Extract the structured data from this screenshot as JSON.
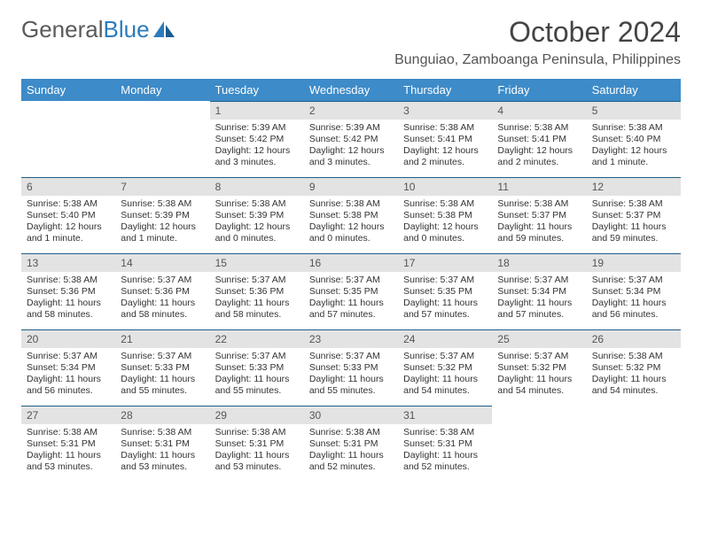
{
  "brand": {
    "part1": "General",
    "part2": "Blue"
  },
  "title": "October 2024",
  "location": "Bunguiao, Zamboanga Peninsula, Philippines",
  "colors": {
    "header_bg": "#3d8bc8",
    "daynum_bg": "#e3e3e3",
    "rule": "#1f5f8b",
    "brand_blue": "#2b7bbd",
    "text": "#333333",
    "background": "#ffffff"
  },
  "dow": [
    "Sunday",
    "Monday",
    "Tuesday",
    "Wednesday",
    "Thursday",
    "Friday",
    "Saturday"
  ],
  "weeks": [
    [
      null,
      null,
      {
        "n": "1",
        "sr": "Sunrise: 5:39 AM",
        "ss": "Sunset: 5:42 PM",
        "dl": "Daylight: 12 hours and 3 minutes."
      },
      {
        "n": "2",
        "sr": "Sunrise: 5:39 AM",
        "ss": "Sunset: 5:42 PM",
        "dl": "Daylight: 12 hours and 3 minutes."
      },
      {
        "n": "3",
        "sr": "Sunrise: 5:38 AM",
        "ss": "Sunset: 5:41 PM",
        "dl": "Daylight: 12 hours and 2 minutes."
      },
      {
        "n": "4",
        "sr": "Sunrise: 5:38 AM",
        "ss": "Sunset: 5:41 PM",
        "dl": "Daylight: 12 hours and 2 minutes."
      },
      {
        "n": "5",
        "sr": "Sunrise: 5:38 AM",
        "ss": "Sunset: 5:40 PM",
        "dl": "Daylight: 12 hours and 1 minute."
      }
    ],
    [
      {
        "n": "6",
        "sr": "Sunrise: 5:38 AM",
        "ss": "Sunset: 5:40 PM",
        "dl": "Daylight: 12 hours and 1 minute."
      },
      {
        "n": "7",
        "sr": "Sunrise: 5:38 AM",
        "ss": "Sunset: 5:39 PM",
        "dl": "Daylight: 12 hours and 1 minute."
      },
      {
        "n": "8",
        "sr": "Sunrise: 5:38 AM",
        "ss": "Sunset: 5:39 PM",
        "dl": "Daylight: 12 hours and 0 minutes."
      },
      {
        "n": "9",
        "sr": "Sunrise: 5:38 AM",
        "ss": "Sunset: 5:38 PM",
        "dl": "Daylight: 12 hours and 0 minutes."
      },
      {
        "n": "10",
        "sr": "Sunrise: 5:38 AM",
        "ss": "Sunset: 5:38 PM",
        "dl": "Daylight: 12 hours and 0 minutes."
      },
      {
        "n": "11",
        "sr": "Sunrise: 5:38 AM",
        "ss": "Sunset: 5:37 PM",
        "dl": "Daylight: 11 hours and 59 minutes."
      },
      {
        "n": "12",
        "sr": "Sunrise: 5:38 AM",
        "ss": "Sunset: 5:37 PM",
        "dl": "Daylight: 11 hours and 59 minutes."
      }
    ],
    [
      {
        "n": "13",
        "sr": "Sunrise: 5:38 AM",
        "ss": "Sunset: 5:36 PM",
        "dl": "Daylight: 11 hours and 58 minutes."
      },
      {
        "n": "14",
        "sr": "Sunrise: 5:37 AM",
        "ss": "Sunset: 5:36 PM",
        "dl": "Daylight: 11 hours and 58 minutes."
      },
      {
        "n": "15",
        "sr": "Sunrise: 5:37 AM",
        "ss": "Sunset: 5:36 PM",
        "dl": "Daylight: 11 hours and 58 minutes."
      },
      {
        "n": "16",
        "sr": "Sunrise: 5:37 AM",
        "ss": "Sunset: 5:35 PM",
        "dl": "Daylight: 11 hours and 57 minutes."
      },
      {
        "n": "17",
        "sr": "Sunrise: 5:37 AM",
        "ss": "Sunset: 5:35 PM",
        "dl": "Daylight: 11 hours and 57 minutes."
      },
      {
        "n": "18",
        "sr": "Sunrise: 5:37 AM",
        "ss": "Sunset: 5:34 PM",
        "dl": "Daylight: 11 hours and 57 minutes."
      },
      {
        "n": "19",
        "sr": "Sunrise: 5:37 AM",
        "ss": "Sunset: 5:34 PM",
        "dl": "Daylight: 11 hours and 56 minutes."
      }
    ],
    [
      {
        "n": "20",
        "sr": "Sunrise: 5:37 AM",
        "ss": "Sunset: 5:34 PM",
        "dl": "Daylight: 11 hours and 56 minutes."
      },
      {
        "n": "21",
        "sr": "Sunrise: 5:37 AM",
        "ss": "Sunset: 5:33 PM",
        "dl": "Daylight: 11 hours and 55 minutes."
      },
      {
        "n": "22",
        "sr": "Sunrise: 5:37 AM",
        "ss": "Sunset: 5:33 PM",
        "dl": "Daylight: 11 hours and 55 minutes."
      },
      {
        "n": "23",
        "sr": "Sunrise: 5:37 AM",
        "ss": "Sunset: 5:33 PM",
        "dl": "Daylight: 11 hours and 55 minutes."
      },
      {
        "n": "24",
        "sr": "Sunrise: 5:37 AM",
        "ss": "Sunset: 5:32 PM",
        "dl": "Daylight: 11 hours and 54 minutes."
      },
      {
        "n": "25",
        "sr": "Sunrise: 5:37 AM",
        "ss": "Sunset: 5:32 PM",
        "dl": "Daylight: 11 hours and 54 minutes."
      },
      {
        "n": "26",
        "sr": "Sunrise: 5:38 AM",
        "ss": "Sunset: 5:32 PM",
        "dl": "Daylight: 11 hours and 54 minutes."
      }
    ],
    [
      {
        "n": "27",
        "sr": "Sunrise: 5:38 AM",
        "ss": "Sunset: 5:31 PM",
        "dl": "Daylight: 11 hours and 53 minutes."
      },
      {
        "n": "28",
        "sr": "Sunrise: 5:38 AM",
        "ss": "Sunset: 5:31 PM",
        "dl": "Daylight: 11 hours and 53 minutes."
      },
      {
        "n": "29",
        "sr": "Sunrise: 5:38 AM",
        "ss": "Sunset: 5:31 PM",
        "dl": "Daylight: 11 hours and 53 minutes."
      },
      {
        "n": "30",
        "sr": "Sunrise: 5:38 AM",
        "ss": "Sunset: 5:31 PM",
        "dl": "Daylight: 11 hours and 52 minutes."
      },
      {
        "n": "31",
        "sr": "Sunrise: 5:38 AM",
        "ss": "Sunset: 5:31 PM",
        "dl": "Daylight: 11 hours and 52 minutes."
      },
      null,
      null
    ]
  ]
}
